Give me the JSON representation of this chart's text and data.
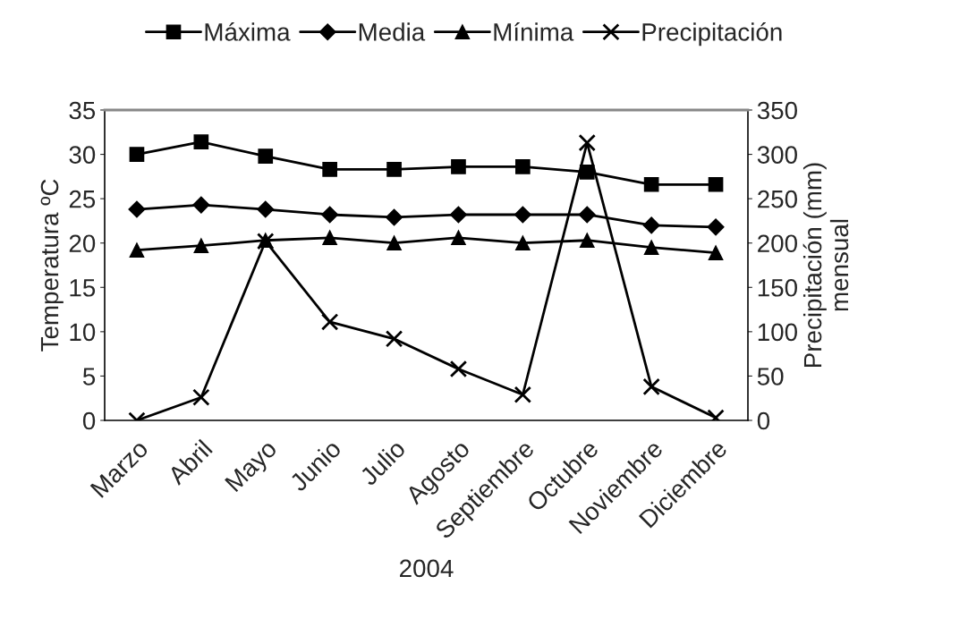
{
  "chart_data": {
    "type": "line",
    "xlabel": "2004",
    "ylabel": "Temperatura ºC",
    "y2label": "Precipitación (mm)\nmensual",
    "categories": [
      "Marzo",
      "Abril",
      "Mayo",
      "Junio",
      "Julio",
      "Agosto",
      "Septiembre",
      "Octubre",
      "Noviembre",
      "Diciembre"
    ],
    "series": [
      {
        "name": "Máxima",
        "color": "#000000",
        "marker": "square",
        "values": [
          30.0,
          31.4,
          29.8,
          28.3,
          28.3,
          28.6,
          28.6,
          28.0,
          26.6,
          26.6
        ]
      },
      {
        "name": "Media",
        "color": "#000000",
        "marker": "diamond",
        "values": [
          23.8,
          24.3,
          23.8,
          23.2,
          22.9,
          23.2,
          23.2,
          23.2,
          22.0,
          21.8
        ]
      },
      {
        "name": "Mínima",
        "color": "#000000",
        "marker": "triangle",
        "values": [
          19.2,
          19.7,
          20.3,
          20.6,
          20.0,
          20.6,
          20.0,
          20.3,
          19.5,
          18.9
        ]
      },
      {
        "name": "Precipitación",
        "color": "#000000",
        "marker": "cross",
        "axis": "y2",
        "values": [
          0,
          26,
          202,
          111,
          92,
          58,
          29,
          313,
          38,
          3
        ]
      }
    ],
    "ylim": [
      0,
      35
    ],
    "yticks": [
      0,
      5,
      10,
      15,
      20,
      25,
      30,
      35
    ],
    "y2lim": [
      0,
      350
    ],
    "y2ticks": [
      0,
      50,
      100,
      150,
      200,
      250,
      300,
      350
    ],
    "grid": false,
    "legend": "top",
    "line_style": "solid"
  }
}
